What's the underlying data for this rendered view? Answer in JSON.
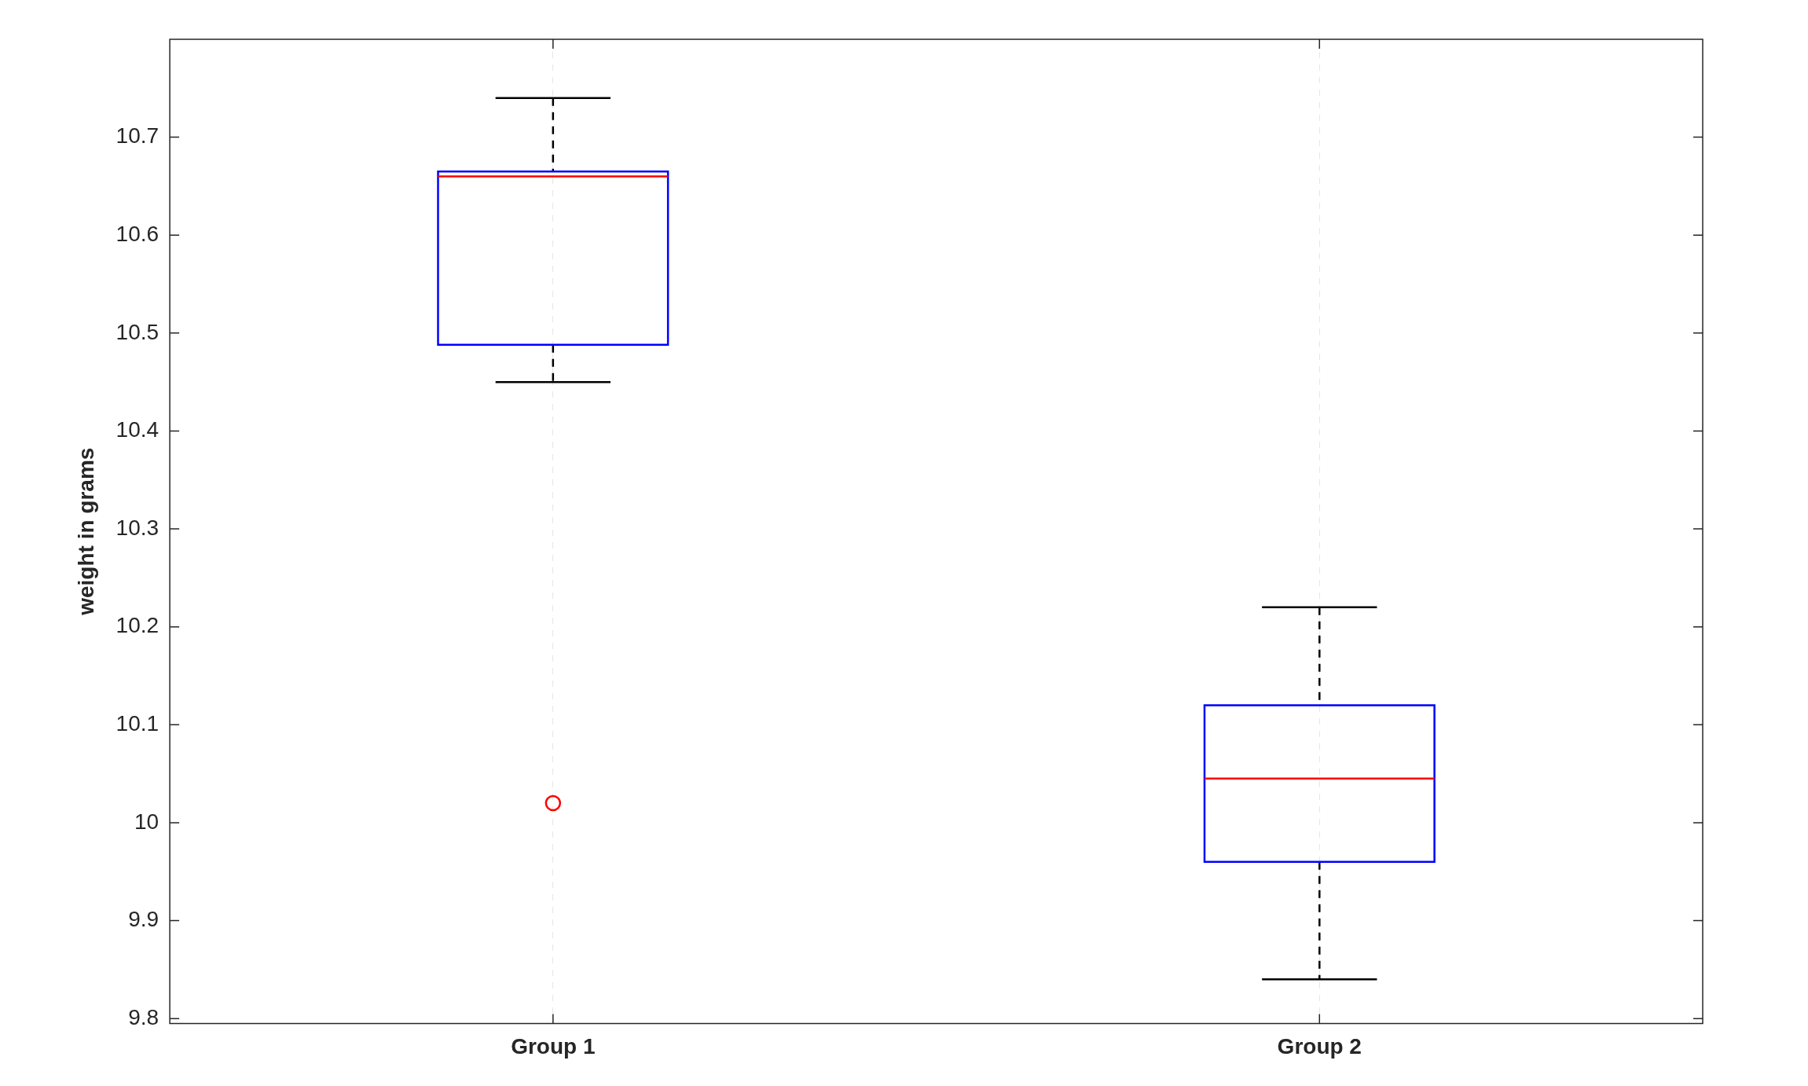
{
  "chart_data": {
    "type": "box",
    "ylabel": "weight in grams",
    "categories": [
      "Group 1",
      "Group 2"
    ],
    "boxes": [
      {
        "low": 10.45,
        "q1": 10.488,
        "median": 10.66,
        "q3": 10.665,
        "high": 10.74,
        "outliers": [
          10.02
        ]
      },
      {
        "low": 9.84,
        "q1": 9.96,
        "median": 10.045,
        "q3": 10.12,
        "high": 10.22
      }
    ],
    "ylim": [
      9.795,
      10.8
    ],
    "yticks": [
      9.8,
      9.9,
      10,
      10.1,
      10.2,
      10.3,
      10.4,
      10.5,
      10.6,
      10.7
    ],
    "grid": "x",
    "marker": "circle"
  }
}
